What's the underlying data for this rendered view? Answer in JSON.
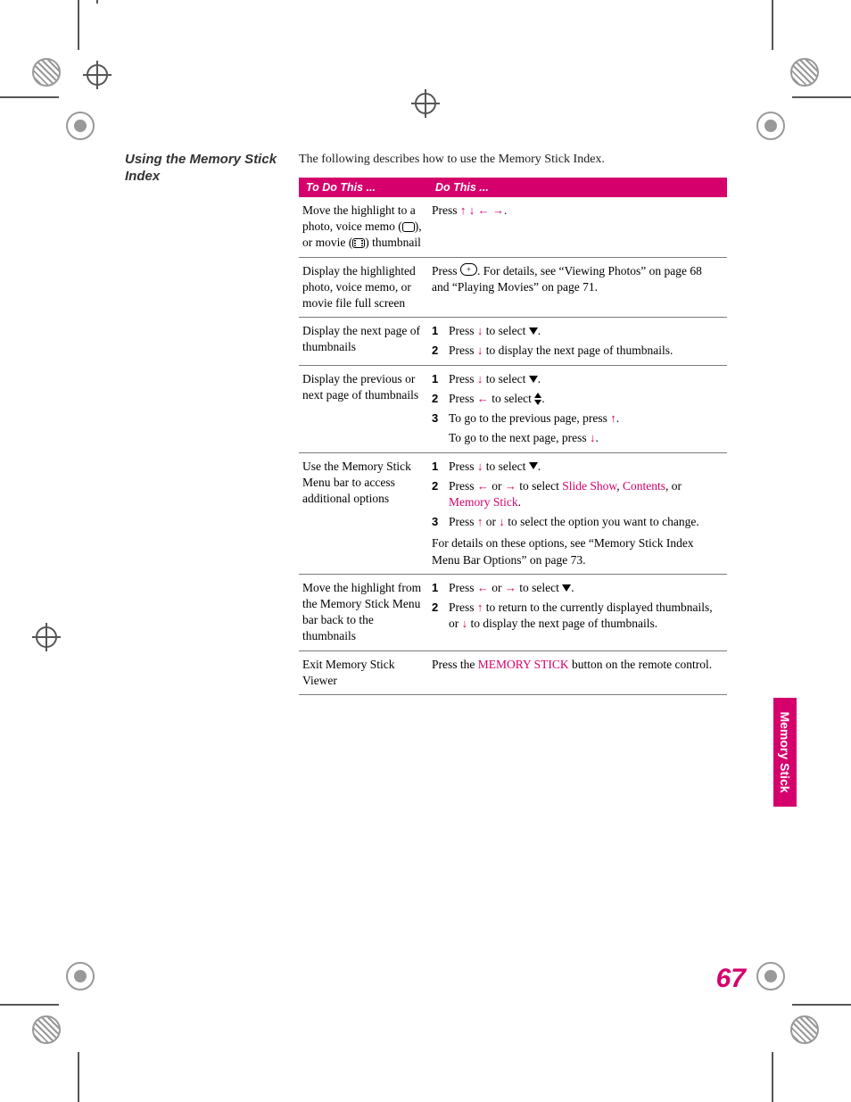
{
  "brand_color": "#d6006c",
  "page_number": "67",
  "side_tab": "Memory Stick",
  "heading": "Using the Memory Stick Index",
  "intro": "The following describes how to use the Memory Stick Index.",
  "table": {
    "header_left": "To Do This ...",
    "header_right": "Do This ...",
    "rows": [
      {
        "left_parts": [
          "Move the highlight to a photo, voice memo (",
          "MEMO_ICON",
          "), or movie (",
          "MOVIE_ICON",
          ") thumbnail"
        ],
        "right": [
          {
            "type": "line",
            "parts": [
              "Press ",
              "ARROW_UP",
              " ",
              "ARROW_DOWN",
              " ",
              "ARROW_LEFT",
              " ",
              "ARROW_RIGHT",
              "."
            ]
          }
        ]
      },
      {
        "left_parts": [
          "Display the highlighted photo, voice memo, or movie file full screen"
        ],
        "right": [
          {
            "type": "line",
            "parts": [
              "Press ",
              "ENTER_BTN",
              ". For details, see “Viewing Photos” on page 68 and “Playing Movies” on page 71."
            ]
          }
        ]
      },
      {
        "left_parts": [
          "Display the next page of thumbnails"
        ],
        "right": [
          {
            "type": "step",
            "num": "1",
            "parts": [
              "Press ",
              "ARROW_DOWN",
              " to select ",
              "TRI_DOWN",
              "."
            ]
          },
          {
            "type": "step",
            "num": "2",
            "parts": [
              "Press ",
              "ARROW_DOWN",
              " to display the next page of thumbnails."
            ]
          }
        ]
      },
      {
        "left_parts": [
          "Display the previous or next page of thumbnails"
        ],
        "right": [
          {
            "type": "step",
            "num": "1",
            "parts": [
              "Press ",
              "ARROW_DOWN",
              " to select ",
              "TRI_DOWN",
              "."
            ]
          },
          {
            "type": "step",
            "num": "2",
            "parts": [
              "Press ",
              "ARROW_LEFT",
              " to select ",
              "UPDOWN_ICON",
              "."
            ]
          },
          {
            "type": "step",
            "num": "3",
            "parts": [
              "To go to the previous page, press ",
              "ARROW_UP",
              "."
            ]
          },
          {
            "type": "indent",
            "parts": [
              "To go to the next page, press ",
              "ARROW_DOWN",
              "."
            ]
          }
        ]
      },
      {
        "left_parts": [
          "Use the Memory Stick Menu bar to access additional options"
        ],
        "right": [
          {
            "type": "step",
            "num": "1",
            "parts": [
              "Press ",
              "ARROW_DOWN",
              " to select ",
              "TRI_DOWN",
              "."
            ]
          },
          {
            "type": "step",
            "num": "2",
            "parts": [
              "Press ",
              "ARROW_LEFT",
              " or ",
              "ARROW_RIGHT",
              " to select ",
              {
                "ui": "Slide Show"
              },
              ", ",
              {
                "ui": "Contents"
              },
              ", or ",
              {
                "ui": "Memory Stick"
              },
              "."
            ]
          },
          {
            "type": "step",
            "num": "3",
            "parts": [
              "Press ",
              "ARROW_UP",
              " or ",
              "ARROW_DOWN",
              " to select the option you want to change."
            ]
          },
          {
            "type": "para",
            "parts": [
              "For details on these options, see “Memory Stick Index Menu Bar Options” on page 73."
            ]
          }
        ]
      },
      {
        "left_parts": [
          "Move the highlight from the Memory Stick Menu bar back to the thumbnails"
        ],
        "right": [
          {
            "type": "step",
            "num": "1",
            "parts": [
              "Press ",
              "ARROW_LEFT",
              " or ",
              "ARROW_RIGHT",
              " to select ",
              "TRI_DOWN",
              "."
            ]
          },
          {
            "type": "step",
            "num": "2",
            "parts": [
              "Press ",
              "ARROW_UP",
              " to return to the currently displayed thumbnails, or ",
              "ARROW_DOWN",
              " to display the next page of thumbnails."
            ]
          }
        ]
      },
      {
        "left_parts": [
          "Exit Memory Stick Viewer"
        ],
        "right": [
          {
            "type": "line",
            "parts": [
              "Press the ",
              {
                "ui": "MEMORY STICK"
              },
              " button on the remote control."
            ]
          }
        ]
      }
    ]
  },
  "arrows": {
    "ARROW_UP": "↑",
    "ARROW_DOWN": "↓",
    "ARROW_LEFT": "←",
    "ARROW_RIGHT": "→"
  },
  "enter_label": "+"
}
